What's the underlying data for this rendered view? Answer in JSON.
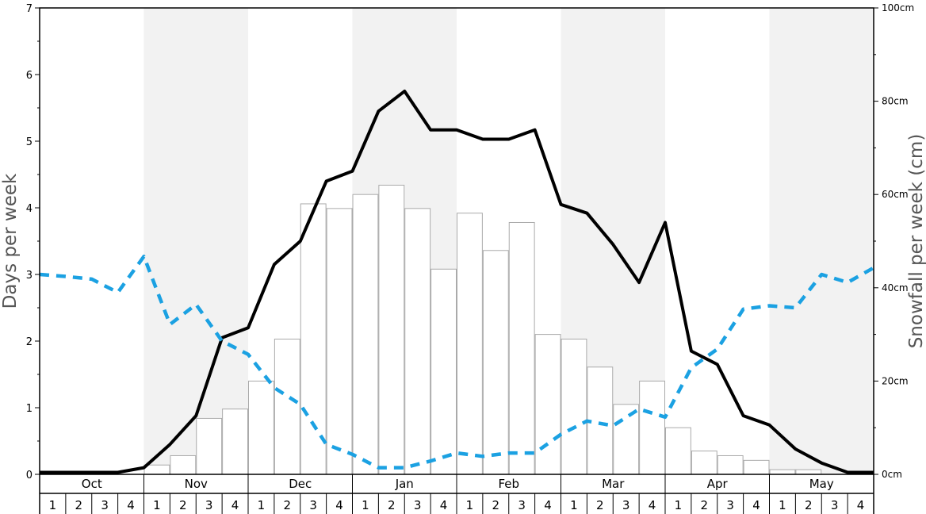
{
  "chart_data": {
    "type": "bar",
    "title": "",
    "xlabel": "",
    "ylabel": "Days per week",
    "y2label": "Snowfall per week (cm)",
    "ylim": [
      0,
      7
    ],
    "y2lim": [
      0,
      100
    ],
    "yticks": [
      0,
      1,
      2,
      3,
      4,
      5,
      6,
      7
    ],
    "y2ticks": [
      0,
      20,
      40,
      60,
      80,
      100
    ],
    "y2tick_labels": [
      "0cm",
      "20cm",
      "40cm",
      "60cm",
      "80cm",
      "100cm"
    ],
    "months": [
      "Oct",
      "Nov",
      "Dec",
      "Jan",
      "Feb",
      "Mar",
      "Apr",
      "May"
    ],
    "weeks": [
      "1",
      "2",
      "3",
      "4"
    ],
    "shaded_months": [
      "Nov",
      "Jan",
      "Mar",
      "May"
    ],
    "grid": false,
    "colors": {
      "bars_fill": "#ffffff",
      "bars_stroke": "#aaaaaa",
      "shade": "#f2f2f2",
      "solid_line": "#000000",
      "dashed_line": "#1ba1e2"
    },
    "series": [
      {
        "type": "bar",
        "axis": "right",
        "values": [
          0,
          0,
          0,
          0,
          2,
          4,
          12,
          14,
          20,
          29,
          58,
          57,
          60,
          62,
          57,
          44,
          56,
          48,
          54,
          30,
          29,
          23,
          15,
          20,
          10,
          5,
          4,
          3,
          1,
          1,
          0,
          0
        ]
      },
      {
        "type": "line",
        "style": "solid",
        "axis": "left",
        "values": [
          0.03,
          0.03,
          0.03,
          0.03,
          0.1,
          0.45,
          0.88,
          2.05,
          2.2,
          3.15,
          3.5,
          4.4,
          4.55,
          5.45,
          5.75,
          5.17,
          5.17,
          5.03,
          5.03,
          5.17,
          4.05,
          3.92,
          3.45,
          2.88,
          3.78,
          1.85,
          1.65,
          0.88,
          0.74,
          0.38,
          0.17,
          0.03,
          0.03
        ]
      },
      {
        "type": "line",
        "style": "dashed",
        "axis": "left",
        "values": [
          3.0,
          2.97,
          2.93,
          2.73,
          3.27,
          2.25,
          2.55,
          2.0,
          1.8,
          1.3,
          1.05,
          0.45,
          0.3,
          0.1,
          0.1,
          0.2,
          0.32,
          0.27,
          0.32,
          0.32,
          0.6,
          0.8,
          0.73,
          0.98,
          0.86,
          1.6,
          1.88,
          2.48,
          2.53,
          2.5,
          3.0,
          2.88,
          3.1
        ]
      }
    ]
  }
}
